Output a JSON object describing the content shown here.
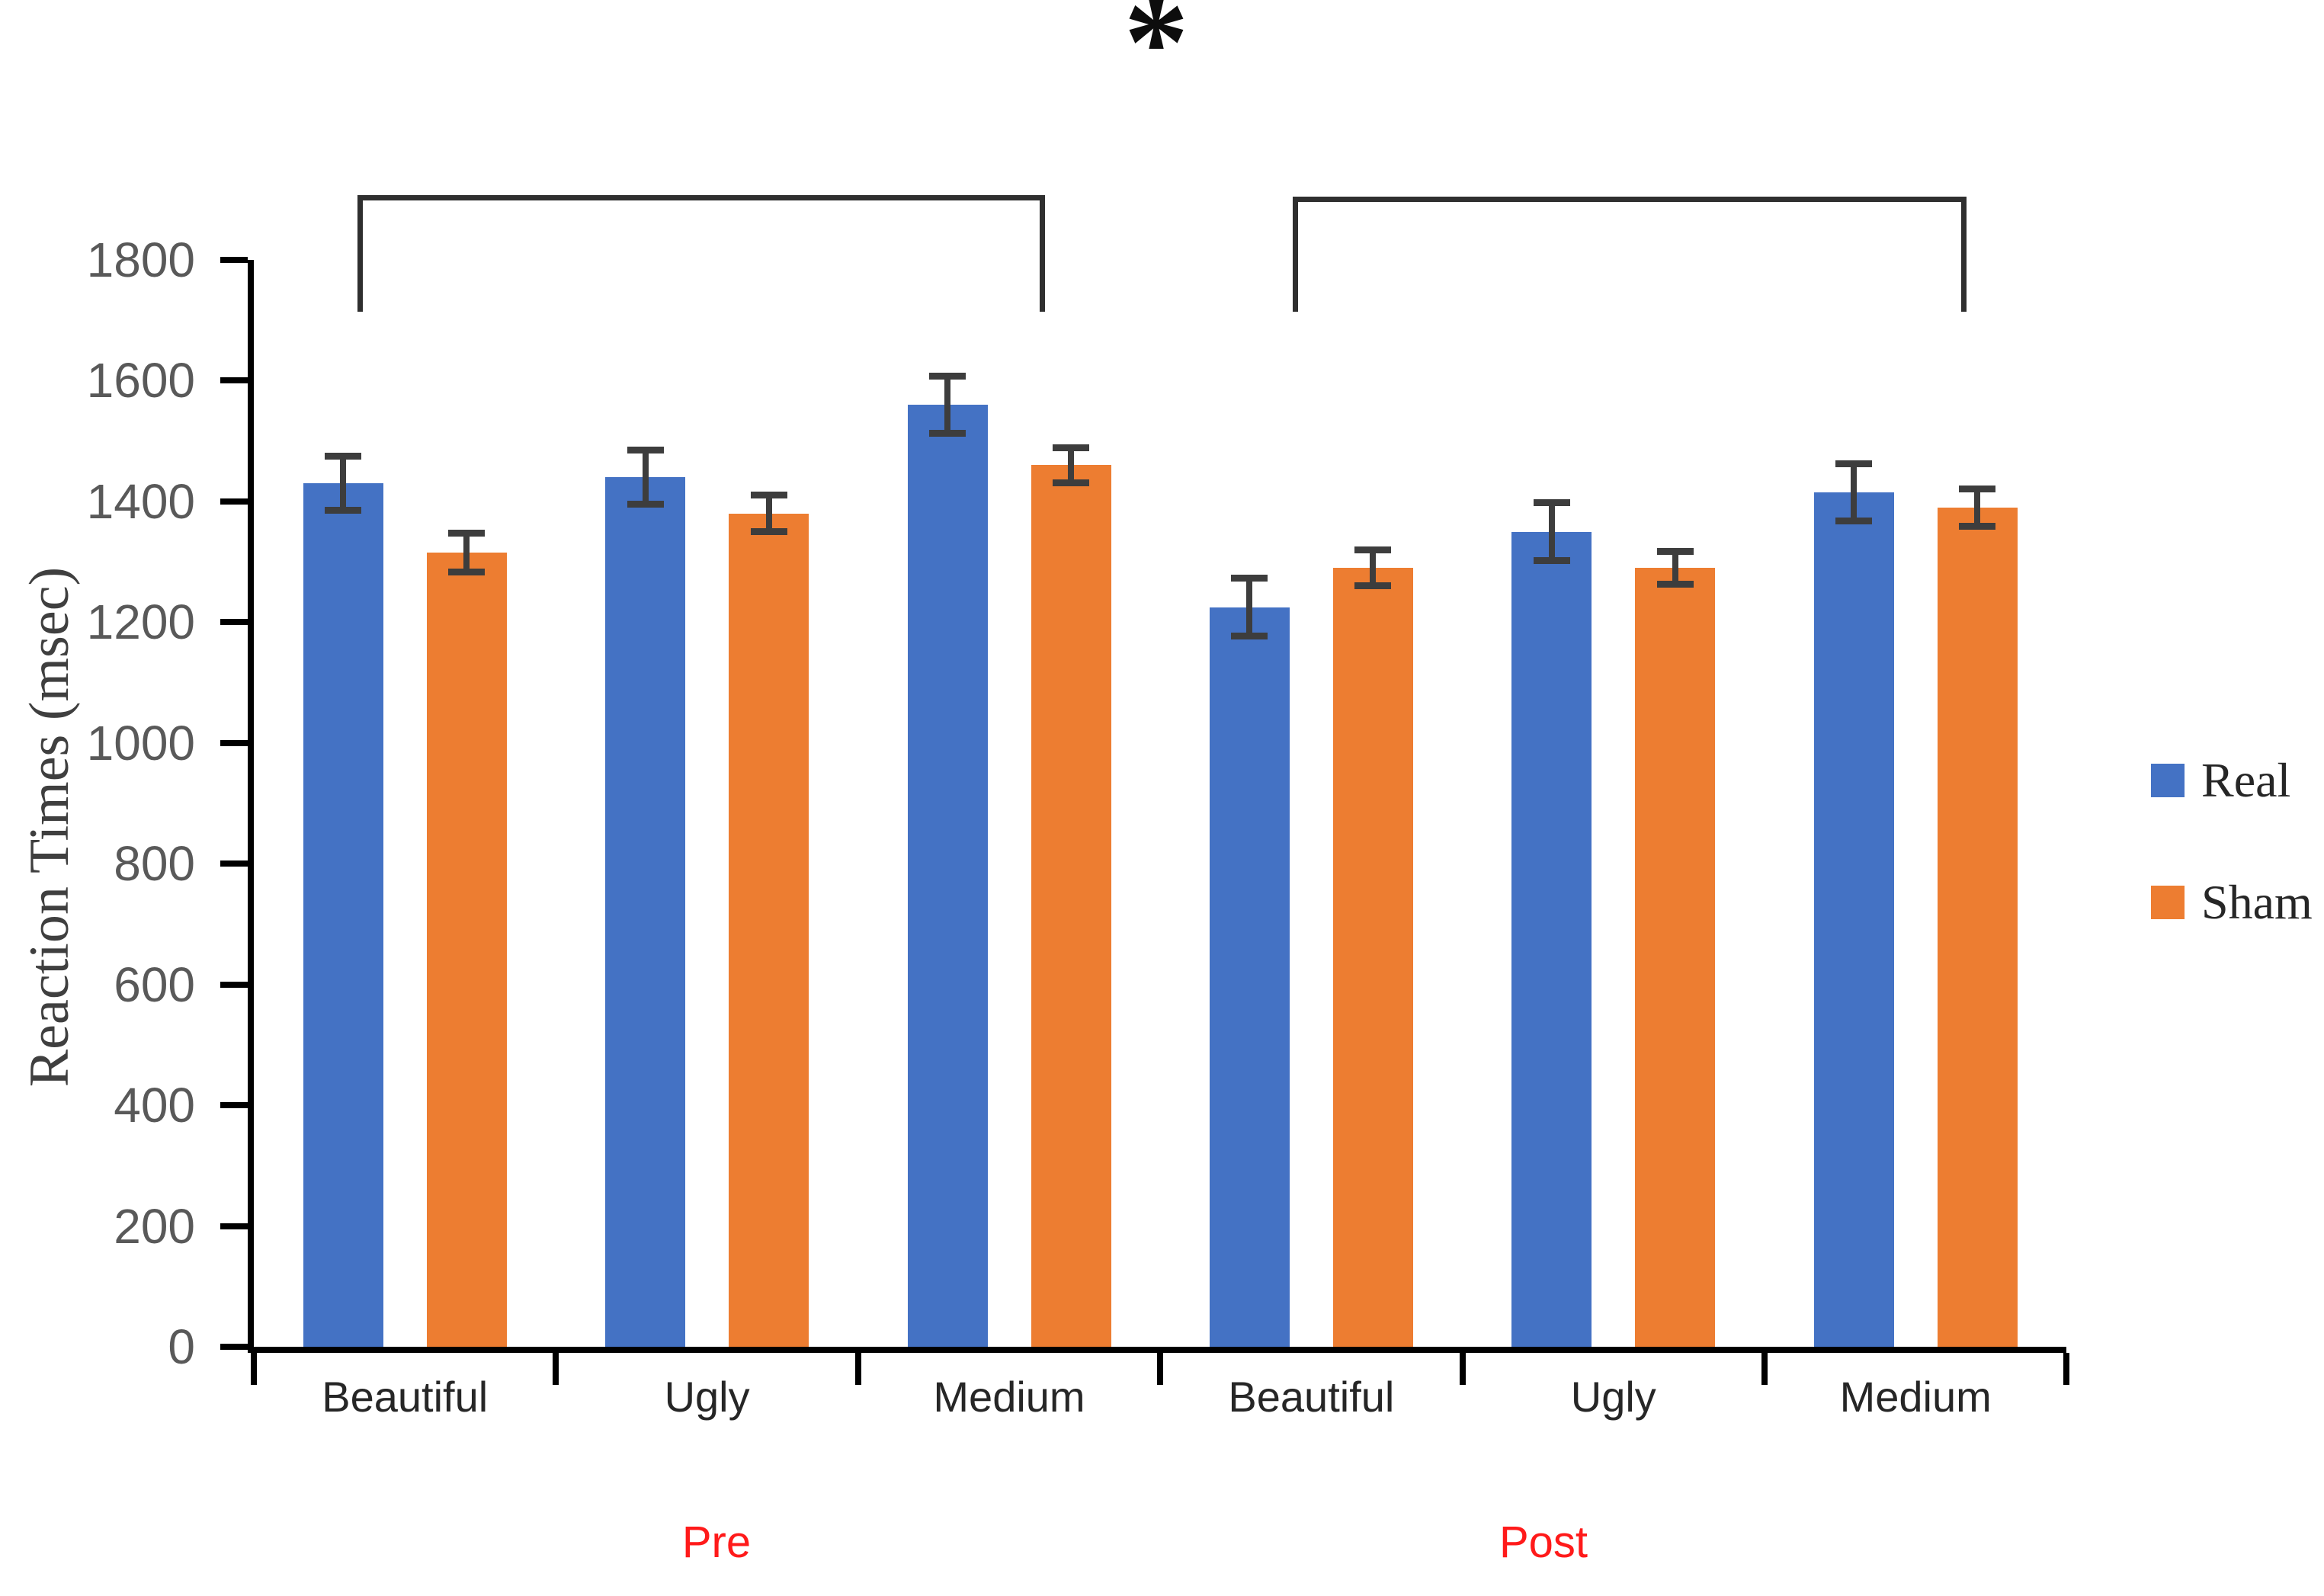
{
  "chart_data": {
    "type": "bar",
    "title": "",
    "ylabel": "Reaction Times (msec)",
    "xlabel": "",
    "ylim": [
      0,
      1800
    ],
    "yticks": [
      0,
      200,
      400,
      600,
      800,
      1000,
      1200,
      1400,
      1600,
      1800
    ],
    "grid": false,
    "legend_position": "right",
    "categories": [
      "Beautiful",
      "Ugly",
      "Medium",
      "Beautiful",
      "Ugly",
      "Medium"
    ],
    "groups": [
      {
        "label": "Pre",
        "span": [
          0,
          2
        ]
      },
      {
        "label": "Post",
        "span": [
          3,
          5
        ]
      }
    ],
    "group_label_color": "#FF1A1A",
    "series": [
      {
        "name": "Real",
        "color": "#4472C4",
        "values": [
          1430,
          1440,
          1560,
          1225,
          1350,
          1415
        ],
        "errors": [
          45,
          45,
          47,
          48,
          48,
          47
        ]
      },
      {
        "name": "Sham",
        "color": "#ED7D31",
        "values": [
          1315,
          1380,
          1460,
          1290,
          1290,
          1390
        ],
        "errors": [
          32,
          30,
          29,
          30,
          27,
          31
        ]
      }
    ],
    "error_bar_color": "#3D3D3D",
    "axis_color": "#000000",
    "tick_label_color": "#595959",
    "significance": {
      "label": "*",
      "brackets": [
        {
          "group": "Pre",
          "spans_categories": [
            "Beautiful",
            "Ugly",
            "Medium"
          ]
        },
        {
          "group": "Post",
          "spans_categories": [
            "Beautiful",
            "Ugly",
            "Medium"
          ]
        }
      ]
    }
  }
}
